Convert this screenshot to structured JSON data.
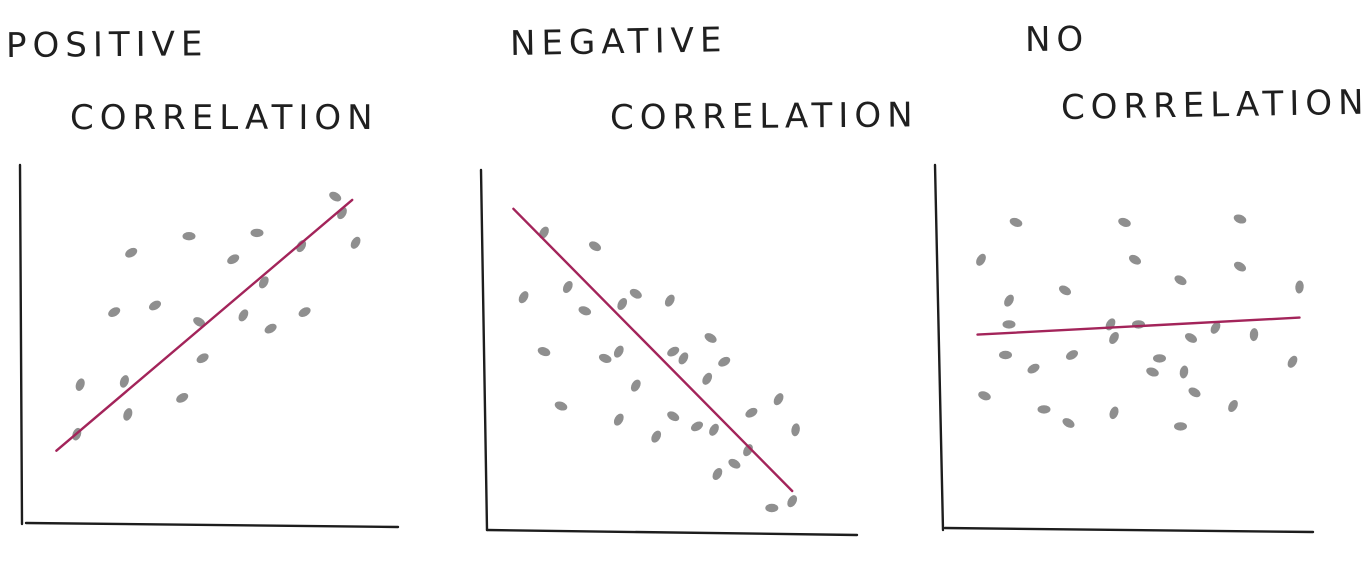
{
  "chart_data": [
    {
      "type": "scatter",
      "title": [
        "POSITIVE",
        "CORRELATION"
      ],
      "xlim": [
        0,
        10
      ],
      "ylim": [
        0,
        10
      ],
      "grid": false,
      "trend": {
        "x": [
          0.6,
          9.3
        ],
        "y": [
          2.1,
          9.7
        ]
      },
      "points": [
        {
          "x": 1.3,
          "y": 4.1,
          "angle": -70
        },
        {
          "x": 1.2,
          "y": 2.6,
          "angle": -70
        },
        {
          "x": 2.3,
          "y": 6.3,
          "angle": -30
        },
        {
          "x": 2.6,
          "y": 4.2,
          "angle": -70
        },
        {
          "x": 2.8,
          "y": 8.1,
          "angle": -30
        },
        {
          "x": 3.5,
          "y": 6.5,
          "angle": -30
        },
        {
          "x": 2.7,
          "y": 3.2,
          "angle": -70
        },
        {
          "x": 4.5,
          "y": 8.6,
          "angle": 0
        },
        {
          "x": 4.3,
          "y": 3.7,
          "angle": -30
        },
        {
          "x": 4.8,
          "y": 6.0,
          "angle": 30
        },
        {
          "x": 4.9,
          "y": 4.9,
          "angle": -30
        },
        {
          "x": 5.8,
          "y": 7.9,
          "angle": -30
        },
        {
          "x": 6.1,
          "y": 6.2,
          "angle": -60
        },
        {
          "x": 6.5,
          "y": 8.7,
          "angle": 0
        },
        {
          "x": 6.7,
          "y": 7.2,
          "angle": -60
        },
        {
          "x": 6.9,
          "y": 5.8,
          "angle": -30
        },
        {
          "x": 7.8,
          "y": 8.3,
          "angle": -60
        },
        {
          "x": 7.9,
          "y": 6.3,
          "angle": -30
        },
        {
          "x": 8.8,
          "y": 9.8,
          "angle": 30
        },
        {
          "x": 9.0,
          "y": 9.3,
          "angle": -60
        },
        {
          "x": 9.4,
          "y": 8.4,
          "angle": -60
        }
      ]
    },
    {
      "type": "scatter",
      "title": [
        "NEGATIVE",
        "CORRELATION"
      ],
      "xlim": [
        0,
        10
      ],
      "ylim": [
        0,
        10
      ],
      "grid": false,
      "trend": {
        "x": [
          0.6,
          8.8
        ],
        "y": [
          9.3,
          1.0
        ]
      },
      "points": [
        {
          "x": 1.5,
          "y": 8.6,
          "angle": -60
        },
        {
          "x": 3.0,
          "y": 8.2,
          "angle": 30
        },
        {
          "x": 0.9,
          "y": 6.7,
          "angle": -60
        },
        {
          "x": 2.2,
          "y": 7.0,
          "angle": -60
        },
        {
          "x": 2.7,
          "y": 6.3,
          "angle": 20
        },
        {
          "x": 3.8,
          "y": 6.5,
          "angle": -60
        },
        {
          "x": 4.2,
          "y": 6.8,
          "angle": 30
        },
        {
          "x": 5.2,
          "y": 6.6,
          "angle": -60
        },
        {
          "x": 1.5,
          "y": 5.1,
          "angle": 20
        },
        {
          "x": 3.3,
          "y": 4.9,
          "angle": 20
        },
        {
          "x": 3.7,
          "y": 5.1,
          "angle": -60
        },
        {
          "x": 5.3,
          "y": 5.1,
          "angle": -30
        },
        {
          "x": 5.6,
          "y": 4.9,
          "angle": -60
        },
        {
          "x": 6.4,
          "y": 5.5,
          "angle": 30
        },
        {
          "x": 6.8,
          "y": 4.8,
          "angle": -30
        },
        {
          "x": 6.3,
          "y": 4.3,
          "angle": -60
        },
        {
          "x": 4.2,
          "y": 4.1,
          "angle": -60
        },
        {
          "x": 2.0,
          "y": 3.5,
          "angle": 20
        },
        {
          "x": 3.7,
          "y": 3.1,
          "angle": -60
        },
        {
          "x": 5.3,
          "y": 3.2,
          "angle": 30
        },
        {
          "x": 6.0,
          "y": 2.9,
          "angle": -30
        },
        {
          "x": 6.5,
          "y": 2.8,
          "angle": -60
        },
        {
          "x": 4.8,
          "y": 2.6,
          "angle": -60
        },
        {
          "x": 7.6,
          "y": 3.3,
          "angle": -30
        },
        {
          "x": 8.4,
          "y": 3.7,
          "angle": -60
        },
        {
          "x": 8.9,
          "y": 2.8,
          "angle": -80
        },
        {
          "x": 7.5,
          "y": 2.2,
          "angle": -60
        },
        {
          "x": 7.1,
          "y": 1.8,
          "angle": 30
        },
        {
          "x": 6.6,
          "y": 1.5,
          "angle": -60
        },
        {
          "x": 8.2,
          "y": 0.5,
          "angle": 0
        },
        {
          "x": 8.8,
          "y": 0.7,
          "angle": -60
        }
      ]
    },
    {
      "type": "scatter",
      "title": [
        "NO",
        "CORRELATION"
      ],
      "xlim": [
        0,
        10
      ],
      "ylim": [
        0,
        10
      ],
      "grid": false,
      "trend": {
        "x": [
          0.7,
          9.9
        ],
        "y": [
          5.6,
          6.1
        ]
      },
      "points": [
        {
          "x": 1.8,
          "y": 8.9,
          "angle": 20
        },
        {
          "x": 4.9,
          "y": 8.9,
          "angle": 20
        },
        {
          "x": 8.2,
          "y": 9.0,
          "angle": 20
        },
        {
          "x": 0.8,
          "y": 7.8,
          "angle": -60
        },
        {
          "x": 5.2,
          "y": 7.8,
          "angle": 30
        },
        {
          "x": 8.2,
          "y": 7.6,
          "angle": 30
        },
        {
          "x": 6.5,
          "y": 7.2,
          "angle": 30
        },
        {
          "x": 9.9,
          "y": 7.0,
          "angle": -85
        },
        {
          "x": 3.2,
          "y": 6.9,
          "angle": 30
        },
        {
          "x": 1.6,
          "y": 6.6,
          "angle": -60
        },
        {
          "x": 1.6,
          "y": 5.9,
          "angle": 0
        },
        {
          "x": 4.5,
          "y": 5.9,
          "angle": -60
        },
        {
          "x": 5.3,
          "y": 5.9,
          "angle": 0
        },
        {
          "x": 6.8,
          "y": 5.5,
          "angle": 30
        },
        {
          "x": 7.5,
          "y": 5.8,
          "angle": -60
        },
        {
          "x": 8.6,
          "y": 5.6,
          "angle": -85
        },
        {
          "x": 4.6,
          "y": 5.5,
          "angle": -60
        },
        {
          "x": 1.5,
          "y": 5.0,
          "angle": 0
        },
        {
          "x": 3.4,
          "y": 5.0,
          "angle": -30
        },
        {
          "x": 5.9,
          "y": 4.9,
          "angle": 0
        },
        {
          "x": 2.3,
          "y": 4.6,
          "angle": -30
        },
        {
          "x": 5.7,
          "y": 4.5,
          "angle": 20
        },
        {
          "x": 6.6,
          "y": 4.5,
          "angle": -80
        },
        {
          "x": 9.7,
          "y": 4.8,
          "angle": -60
        },
        {
          "x": 0.9,
          "y": 3.8,
          "angle": 20
        },
        {
          "x": 6.9,
          "y": 3.9,
          "angle": 30
        },
        {
          "x": 2.6,
          "y": 3.4,
          "angle": 0
        },
        {
          "x": 8.0,
          "y": 3.5,
          "angle": -60
        },
        {
          "x": 4.6,
          "y": 3.3,
          "angle": -70
        },
        {
          "x": 3.3,
          "y": 3.0,
          "angle": 30
        },
        {
          "x": 6.5,
          "y": 2.9,
          "angle": 0
        }
      ]
    }
  ]
}
